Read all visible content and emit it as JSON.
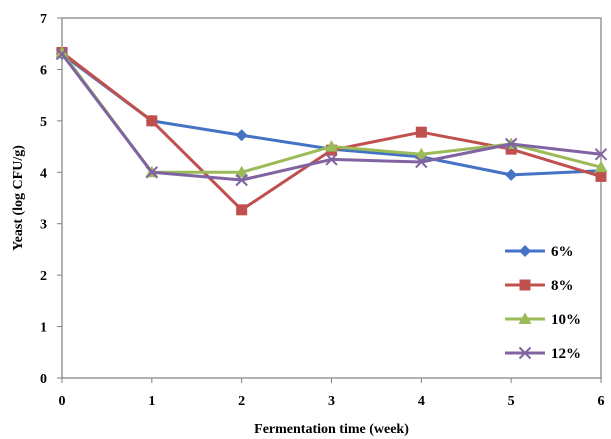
{
  "chart_data": {
    "type": "line",
    "xlabel": "Fermentation time (week)",
    "ylabel": "Yeast (log CFU/g)",
    "xlim": [
      0,
      6
    ],
    "ylim": [
      0,
      7
    ],
    "x_ticks": [
      "0",
      "1",
      "2",
      "3",
      "4",
      "5",
      "6"
    ],
    "y_ticks": [
      "0",
      "1",
      "2",
      "3",
      "4",
      "5",
      "6",
      "7"
    ],
    "x": [
      0,
      1,
      2,
      3,
      4,
      5,
      6
    ],
    "grid": false,
    "legend_position": "bottom-right",
    "series": [
      {
        "name": "6%",
        "color": "#4472C4",
        "marker": "diamond",
        "values": [
          6.3,
          5.0,
          4.72,
          4.45,
          4.3,
          3.95,
          4.03
        ]
      },
      {
        "name": "8%",
        "color": "#C0504D",
        "marker": "square",
        "values": [
          6.33,
          5.0,
          3.27,
          4.43,
          4.78,
          4.45,
          3.92
        ]
      },
      {
        "name": "10%",
        "color": "#9BBB59",
        "marker": "triangle",
        "values": [
          6.33,
          4.0,
          4.0,
          4.5,
          4.35,
          4.55,
          4.1
        ]
      },
      {
        "name": "12%",
        "color": "#8064A2",
        "marker": "x",
        "values": [
          6.3,
          4.0,
          3.85,
          4.25,
          4.2,
          4.55,
          4.35
        ]
      }
    ]
  }
}
